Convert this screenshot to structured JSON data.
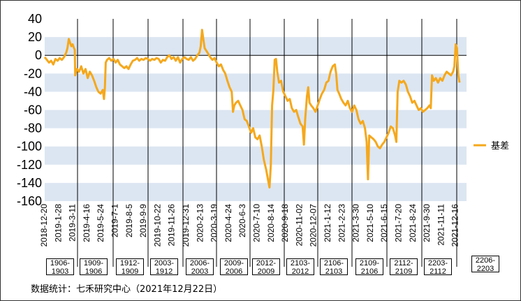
{
  "chart_data": {
    "type": "line",
    "title": "",
    "xlabel": "",
    "ylabel": "",
    "ylim": [
      -160,
      40
    ],
    "yticks": [
      40,
      20,
      0,
      -20,
      -40,
      -60,
      -80,
      -100,
      -120,
      -140,
      -160
    ],
    "grid": "alternating horizontal bands",
    "legend": "right",
    "x_ticks": [
      "2018-12-20",
      "2019-1-28",
      "2019-3-11",
      "2019-4-16",
      "2019-5-24",
      "2019-7-1",
      "2019-8-5",
      "2019-9-9",
      "2019-10-22",
      "2019-11-26",
      "2019-12-31",
      "2020-2-13",
      "2020-3-19",
      "2020-4-24",
      "2020-6-3",
      "2020-7-10",
      "2020-8-14",
      "2020-9-18",
      "2020-11-02",
      "2020-12-07",
      "2021-1-12",
      "2021-2-23",
      "2021-3-30",
      "2021-5-10",
      "2021-6-15",
      "2021-7-20",
      "2021-8-24",
      "2021-9-30",
      "2021-11-11",
      "2021-12-16"
    ],
    "series": [
      {
        "name": "基差",
        "color": "#F5A81C",
        "values": [
          [
            0,
            -2
          ],
          [
            0.5,
            -5
          ],
          [
            1,
            -8
          ],
          [
            1.5,
            -6
          ],
          [
            2,
            -10
          ],
          [
            2.5,
            -4
          ],
          [
            3,
            -6
          ],
          [
            3.5,
            -3
          ],
          [
            4,
            -5
          ],
          [
            4.5,
            -2
          ],
          [
            5,
            3
          ],
          [
            5.3,
            8
          ],
          [
            5.6,
            18
          ],
          [
            5.9,
            14
          ],
          [
            6.2,
            10
          ],
          [
            6.5,
            12
          ],
          [
            6.8,
            8
          ],
          [
            7.0,
            6
          ],
          [
            7.1,
            -22
          ],
          [
            7.5,
            -15
          ],
          [
            8,
            -18
          ],
          [
            8.5,
            -12
          ],
          [
            9,
            -20
          ],
          [
            9.5,
            -15
          ],
          [
            10,
            -25
          ],
          [
            10.5,
            -18
          ],
          [
            11,
            -22
          ],
          [
            11.5,
            -28
          ],
          [
            12,
            -35
          ],
          [
            12.5,
            -40
          ],
          [
            13,
            -42
          ],
          [
            13.5,
            -38
          ],
          [
            13.8,
            -48
          ],
          [
            14.0,
            -35
          ],
          [
            14.2,
            -8
          ],
          [
            14.5,
            -5
          ],
          [
            15,
            -3
          ],
          [
            15.5,
            -6
          ],
          [
            16,
            -4
          ],
          [
            16.5,
            -8
          ],
          [
            17,
            -5
          ],
          [
            17.5,
            -10
          ],
          [
            18,
            -12
          ],
          [
            18.5,
            -14
          ],
          [
            19,
            -12
          ],
          [
            19.5,
            -15
          ],
          [
            20,
            -10
          ],
          [
            20.5,
            -6
          ],
          [
            21,
            -5
          ],
          [
            21.5,
            -3
          ],
          [
            22,
            -6
          ],
          [
            22.5,
            -4
          ],
          [
            23,
            -5
          ],
          [
            23.5,
            -3
          ],
          [
            24,
            -4
          ],
          [
            24.5,
            -6
          ],
          [
            25,
            -4
          ],
          [
            25.5,
            -5
          ],
          [
            26,
            -3
          ],
          [
            26.5,
            -4
          ],
          [
            27,
            -8
          ],
          [
            27.5,
            -5
          ],
          [
            28,
            -6
          ],
          [
            28.5,
            -2
          ],
          [
            29,
            0
          ],
          [
            29.5,
            -4
          ],
          [
            30,
            -2
          ],
          [
            30.5,
            -6
          ],
          [
            31,
            -2
          ],
          [
            31.5,
            -8
          ],
          [
            32,
            -4
          ],
          [
            32.5,
            -2
          ],
          [
            33,
            -4
          ],
          [
            33.5,
            -5
          ],
          [
            34,
            -2
          ],
          [
            34.5,
            -6
          ],
          [
            35,
            -4
          ],
          [
            35.5,
            0
          ],
          [
            36,
            3
          ],
          [
            36.3,
            10
          ],
          [
            36.6,
            28
          ],
          [
            36.9,
            18
          ],
          [
            37.2,
            8
          ],
          [
            37.6,
            5
          ],
          [
            38,
            2
          ],
          [
            38.5,
            -2
          ],
          [
            39,
            -5
          ],
          [
            39.5,
            -3
          ],
          [
            40,
            -8
          ],
          [
            40.5,
            -12
          ],
          [
            41,
            -10
          ],
          [
            41.5,
            -16
          ],
          [
            42,
            -20
          ],
          [
            42.5,
            -28
          ],
          [
            43,
            -35
          ],
          [
            43.5,
            -40
          ],
          [
            43.8,
            -62
          ],
          [
            44.1,
            -55
          ],
          [
            44.5,
            -52
          ],
          [
            45,
            -50
          ],
          [
            45.5,
            -55
          ],
          [
            46,
            -60
          ],
          [
            46.5,
            -70
          ],
          [
            47,
            -72
          ],
          [
            47.5,
            -78
          ],
          [
            48,
            -85
          ],
          [
            48.5,
            -80
          ],
          [
            49,
            -90
          ],
          [
            49.5,
            -92
          ],
          [
            50,
            -88
          ],
          [
            50.5,
            -100
          ],
          [
            51,
            -115
          ],
          [
            51.5,
            -125
          ],
          [
            52,
            -138
          ],
          [
            52.3,
            -145
          ],
          [
            52.6,
            -120
          ],
          [
            52.9,
            -55
          ],
          [
            53.2,
            -38
          ],
          [
            53.5,
            -5
          ],
          [
            53.8,
            -4
          ],
          [
            54.1,
            -18
          ],
          [
            54.5,
            -30
          ],
          [
            55,
            -28
          ],
          [
            55.5,
            -40
          ],
          [
            56,
            -45
          ],
          [
            56.5,
            -50
          ],
          [
            57,
            -48
          ],
          [
            57.5,
            -58
          ],
          [
            58,
            -62
          ],
          [
            58.5,
            -60
          ],
          [
            59,
            -68
          ],
          [
            59.5,
            -75
          ],
          [
            60,
            -78
          ],
          [
            60.3,
            -98
          ],
          [
            60.6,
            -70
          ],
          [
            61,
            -45
          ],
          [
            61.3,
            -35
          ],
          [
            61.6,
            -52
          ],
          [
            62,
            -55
          ],
          [
            62.5,
            -58
          ],
          [
            63,
            -62
          ],
          [
            63.5,
            -55
          ],
          [
            64,
            -48
          ],
          [
            64.5,
            -42
          ],
          [
            65,
            -38
          ],
          [
            65.5,
            -30
          ],
          [
            66,
            -28
          ],
          [
            66.5,
            -18
          ],
          [
            67,
            -12
          ],
          [
            67.5,
            -10
          ],
          [
            67.8,
            -20
          ],
          [
            68.1,
            -38
          ],
          [
            68.5,
            -42
          ],
          [
            69,
            -48
          ],
          [
            69.5,
            -52
          ],
          [
            70,
            -55
          ],
          [
            70.5,
            -50
          ],
          [
            71,
            -58
          ],
          [
            71.5,
            -62
          ],
          [
            72,
            -55
          ],
          [
            72.5,
            -60
          ],
          [
            73,
            -70
          ],
          [
            73.5,
            -75
          ],
          [
            74,
            -72
          ],
          [
            74.5,
            -80
          ],
          [
            74.9,
            -95
          ],
          [
            75.2,
            -136
          ],
          [
            75.5,
            -88
          ],
          [
            76,
            -90
          ],
          [
            76.5,
            -92
          ],
          [
            77,
            -95
          ],
          [
            77.5,
            -100
          ],
          [
            78,
            -102
          ],
          [
            78.5,
            -98
          ],
          [
            79,
            -95
          ],
          [
            79.5,
            -90
          ],
          [
            80,
            -85
          ],
          [
            80.5,
            -78
          ],
          [
            81,
            -80
          ],
          [
            81.5,
            -88
          ],
          [
            81.8,
            -95
          ],
          [
            82.1,
            -40
          ],
          [
            82.5,
            -28
          ],
          [
            83,
            -30
          ],
          [
            83.5,
            -28
          ],
          [
            84,
            -32
          ],
          [
            84.5,
            -40
          ],
          [
            85,
            -45
          ],
          [
            85.5,
            -52
          ],
          [
            86,
            -50
          ],
          [
            86.5,
            -55
          ],
          [
            87,
            -60
          ],
          [
            87.5,
            -58
          ],
          [
            88,
            -62
          ],
          [
            88.5,
            -60
          ],
          [
            89,
            -58
          ],
          [
            89.5,
            -55
          ],
          [
            89.8,
            -58
          ],
          [
            90.1,
            -22
          ],
          [
            90.5,
            -28
          ],
          [
            91,
            -25
          ],
          [
            91.5,
            -30
          ],
          [
            92,
            -25
          ],
          [
            92.5,
            -28
          ],
          [
            93,
            -22
          ],
          [
            93.5,
            -18
          ],
          [
            94,
            -20
          ],
          [
            94.5,
            -22
          ],
          [
            95,
            -18
          ],
          [
            95.3,
            -12
          ],
          [
            95.6,
            12
          ],
          [
            95.9,
            8
          ],
          [
            96.2,
            -22
          ],
          [
            96.5,
            -30
          ]
        ]
      }
    ],
    "contracts": [
      "1906-\n1903",
      "1909-\n1906",
      "1912-\n1909",
      "2003-\n1912",
      "2006-\n2003",
      "2009-\n2006",
      "2012-\n2009",
      "2103-\n2012",
      "2106-\n2103",
      "2109-\n2106",
      "2112-\n2109",
      "2203-\n2112",
      "2206-\n2203"
    ]
  },
  "footer": {
    "source": "数据统计：七禾研究中心（2021年12月22日）"
  }
}
